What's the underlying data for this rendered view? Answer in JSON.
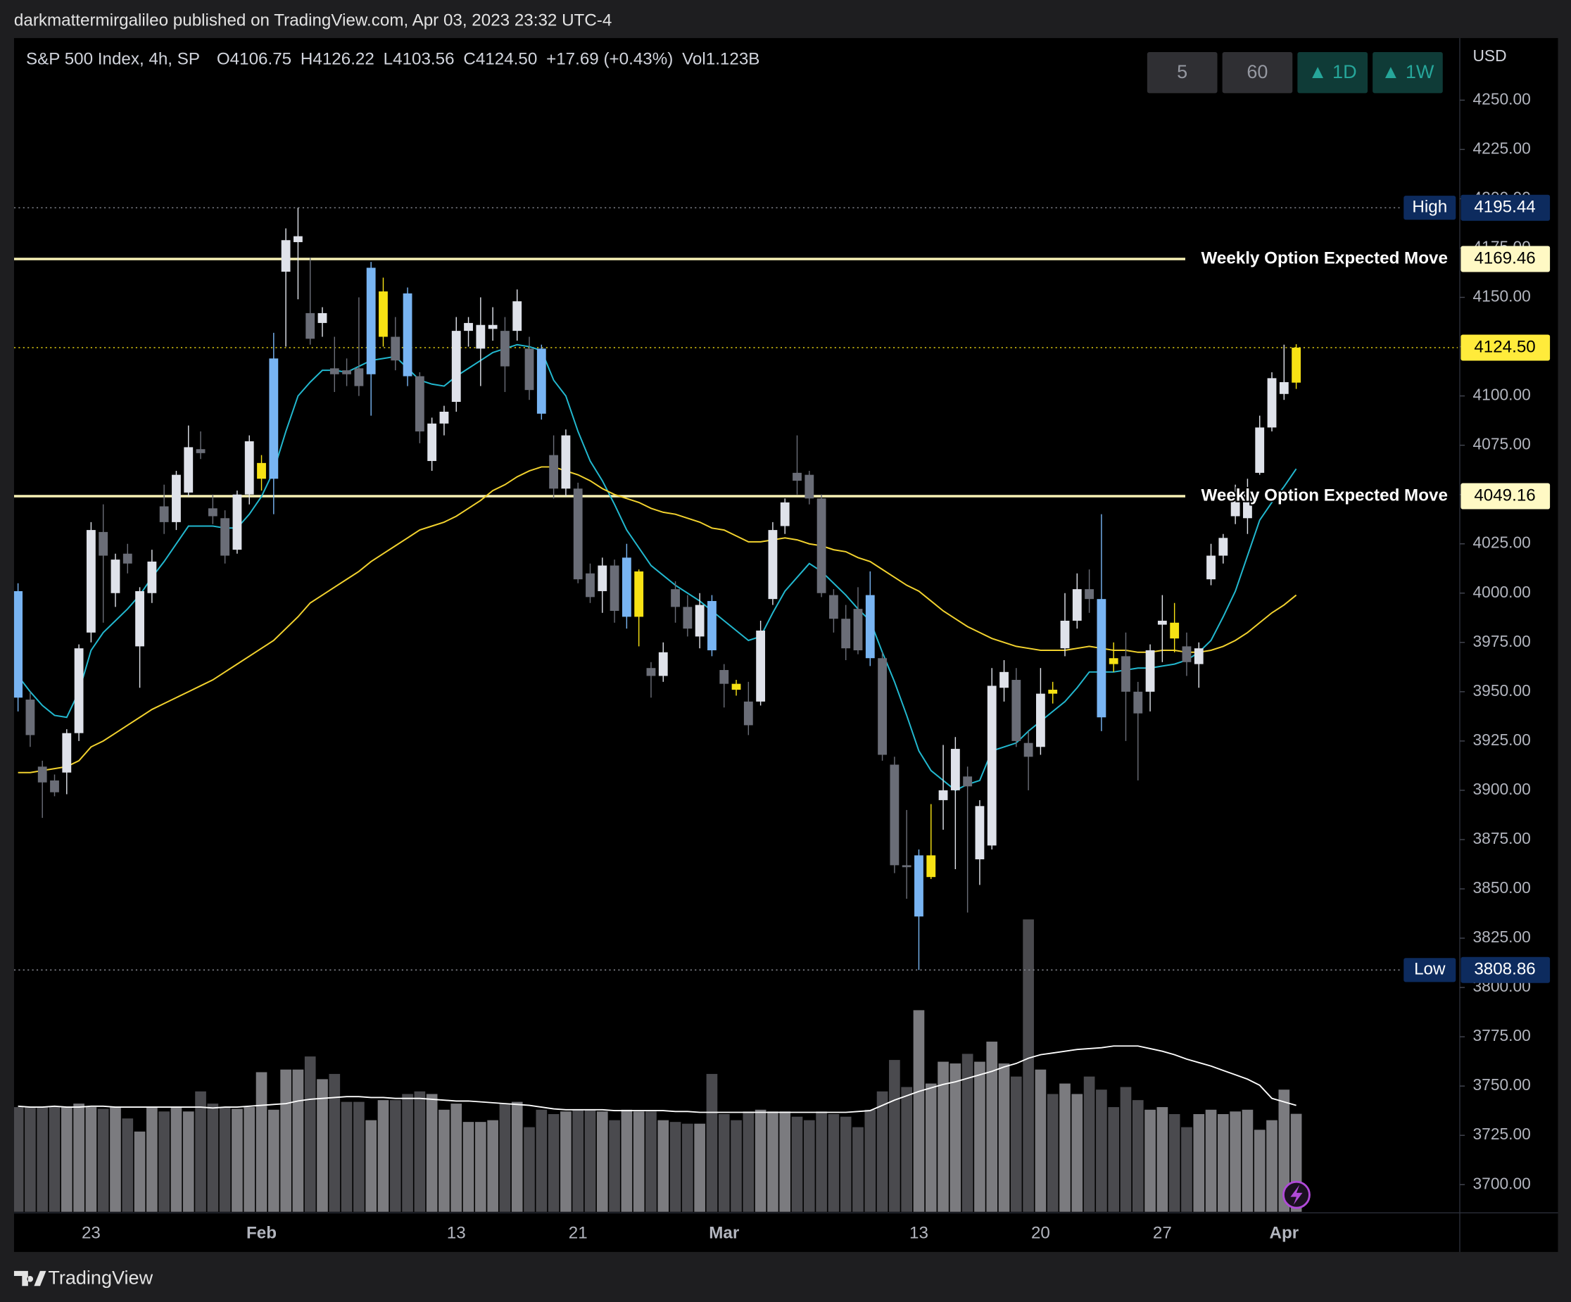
{
  "header": {
    "published": "darkmattermirgalileo published on TradingView.com, Apr 03, 2023 23:32 UTC-4"
  },
  "buttons": [
    "5",
    "60",
    "▲ 1D",
    "▲ 1W"
  ],
  "footer": {
    "brand": "TradingView"
  },
  "chart_data": {
    "type": "candlestick",
    "symbol": "S&P 500 Index, 4h, SP",
    "legend": [
      "O4106.75",
      "H4126.22",
      "L4103.56",
      "C4124.50",
      "+17.69 (+0.43%)",
      "Vol1.123B"
    ],
    "currency": "USD",
    "categories": [
      null,
      null,
      null,
      null,
      null,
      null,
      "23",
      null,
      null,
      null,
      null,
      null,
      null,
      null,
      null,
      null,
      null,
      null,
      null,
      null,
      "Feb",
      null,
      null,
      null,
      null,
      null,
      null,
      null,
      null,
      null,
      null,
      null,
      null,
      null,
      null,
      null,
      "13",
      null,
      null,
      null,
      null,
      null,
      null,
      null,
      null,
      null,
      "21",
      null,
      null,
      null,
      null,
      null,
      null,
      null,
      null,
      null,
      null,
      null,
      "Mar",
      null,
      null,
      null,
      null,
      null,
      null,
      null,
      null,
      null,
      null,
      null,
      null,
      null,
      null,
      null,
      "13",
      null,
      null,
      null,
      null,
      null,
      null,
      null,
      null,
      null,
      "20",
      null,
      null,
      null,
      null,
      null,
      null,
      null,
      null,
      null,
      "27",
      null,
      null,
      null,
      null,
      null,
      null,
      null,
      null,
      null,
      "Apr",
      null
    ],
    "open": [
      4001,
      3946,
      3912,
      3905,
      3909,
      3929,
      3980,
      4031,
      4000,
      4020,
      3973,
      4000,
      4044,
      4036,
      4051,
      4073,
      4043,
      4038,
      4022,
      4050,
      4058,
      4058,
      4163,
      4178,
      4142,
      4137,
      4114,
      4113,
      4114,
      4111,
      4130,
      4130,
      4152,
      4110,
      4067,
      4086,
      4097,
      4133,
      4124,
      4134,
      4133,
      4133,
      4124,
      4124,
      4070,
      4053,
      4053,
      4010,
      4001,
      4014,
      3988,
      3988,
      3962,
      3958,
      4002,
      3993,
      3978,
      3996,
      3961,
      3954,
      3945,
      3945,
      3997,
      4034,
      4061,
      4060,
      4048,
      3999,
      3987,
      3992,
      3999,
      3967,
      3913,
      3862,
      3836,
      3856,
      3895,
      3900,
      3907,
      3865,
      3872,
      3952,
      3956,
      3924,
      3922,
      3951,
      3972,
      3986,
      4002,
      3997,
      3967,
      3968,
      3950,
      3950,
      3984,
      3985,
      3973,
      3964,
      4007,
      4019,
      4039,
      4038,
      4061,
      4084,
      4101,
      4106.75
    ],
    "high": [
      4005,
      3950,
      3915,
      3908,
      3931,
      3974,
      4036,
      4045,
      4020,
      4025,
      4003,
      4022,
      4055,
      4062,
      4085,
      4082,
      4050,
      4042,
      4052,
      4080,
      4070,
      4132,
      4185,
      4195.44,
      4170,
      4145,
      4130,
      4119,
      4150,
      4168,
      4160,
      4140,
      4155,
      4112,
      4089,
      4095,
      4140,
      4140,
      4150,
      4145,
      4140,
      4154,
      4130,
      4126,
      4080,
      4083,
      4056,
      4015,
      4018,
      4017,
      4025,
      4012,
      3965,
      3975,
      4006,
      3999,
      4000,
      3999,
      3964,
      3956,
      3955,
      3986,
      4036,
      4048,
      4080,
      4062,
      4050,
      4002,
      3994,
      4003,
      4011,
      3970,
      3917,
      3890,
      3870,
      3893,
      3923,
      3927,
      3912,
      3895,
      3962,
      3966,
      3962,
      3930,
      3962,
      3955,
      4000,
      4010,
      4012,
      4040,
      3975,
      3980,
      3955,
      3974,
      3999,
      3995,
      3980,
      3975,
      4025,
      4030,
      4055,
      4058,
      4090,
      4112,
      4126,
      4126.22
    ],
    "low": [
      3940,
      3922,
      3886,
      3897,
      3898,
      3925,
      3975,
      3985,
      3993,
      4010,
      3952,
      3995,
      4030,
      4032,
      4049,
      4068,
      4035,
      4015,
      4020,
      4045,
      4052,
      4040,
      4125,
      4149,
      4126,
      4130,
      4102,
      4105,
      4100,
      4090,
      4125,
      4113,
      4105,
      4076,
      4062,
      4080,
      4092,
      4125,
      4105,
      4128,
      4102,
      4128,
      4098,
      4088,
      4048,
      4049,
      4005,
      3995,
      3990,
      3985,
      3982,
      3973,
      3947,
      3955,
      3985,
      3978,
      3972,
      3968,
      3942,
      3948,
      3928,
      3943,
      3994,
      4030,
      4050,
      4045,
      3998,
      3980,
      3966,
      3969,
      3963,
      3915,
      3858,
      3845,
      3808.86,
      3855,
      3880,
      3860,
      3838,
      3852,
      3870,
      3945,
      3922,
      3900,
      3918,
      3944,
      3968,
      3982,
      3990,
      3930,
      3960,
      3925,
      3905,
      3940,
      3965,
      3970,
      3958,
      3952,
      4004,
      4015,
      4035,
      4030,
      4060,
      4082,
      4098,
      4103.56
    ],
    "close": [
      3947,
      3928,
      3904,
      3899,
      3929,
      3972,
      4032,
      4019,
      4017,
      4015,
      4001,
      4016,
      4036,
      4060,
      4074,
      4071,
      4039,
      4019,
      4050,
      4077,
      4066,
      4119,
      4179,
      4181,
      4129,
      4142,
      4111,
      4111,
      4105,
      4165,
      4153,
      4118,
      4110,
      4082,
      4086,
      4092,
      4133,
      4137,
      4136,
      4136,
      4115,
      4148,
      4103,
      4091,
      4053,
      4080,
      4007,
      3998,
      4014,
      3991,
      4018,
      4011,
      3958,
      3970,
      3993,
      3982,
      3994,
      3971,
      3954,
      3951,
      3933,
      3981,
      4032,
      4046,
      4057,
      4048,
      4000,
      3987,
      3972,
      3971,
      3967,
      3918,
      3862,
      3861,
      3867,
      3867,
      3900,
      3921,
      3902,
      3892,
      3953,
      3960,
      3925,
      3917,
      3949,
      3949,
      3986,
      4002,
      3997,
      3937,
      3964,
      3950,
      3939,
      3971,
      3986,
      3977,
      3965,
      3972,
      4019,
      4028,
      4049,
      4050,
      4084,
      4109,
      4107,
      4124.5
    ],
    "colors": [
      "#78b4f2",
      "#6a6d77",
      "#6a6d77",
      "#6a6d77",
      "#dfe2ea",
      "#dfe2ea",
      "#dfe2ea",
      "#6a6d77",
      "#dfe2ea",
      "#6a6d77",
      "#dfe2ea",
      "#dfe2ea",
      "#6a6d77",
      "#dfe2ea",
      "#dfe2ea",
      "#6a6d77",
      "#6a6d77",
      "#6a6d77",
      "#dfe2ea",
      "#dfe2ea",
      "#f7e214",
      "#78b4f2",
      "#dfe2ea",
      "#dfe2ea",
      "#6a6d77",
      "#dfe2ea",
      "#6a6d77",
      "#6a6d77",
      "#6a6d77",
      "#78b4f2",
      "#f7e214",
      "#6a6d77",
      "#78b4f2",
      "#6a6d77",
      "#dfe2ea",
      "#dfe2ea",
      "#dfe2ea",
      "#dfe2ea",
      "#dfe2ea",
      "#dfe2ea",
      "#6a6d77",
      "#dfe2ea",
      "#6a6d77",
      "#78b4f2",
      "#6a6d77",
      "#dfe2ea",
      "#6a6d77",
      "#6a6d77",
      "#dfe2ea",
      "#6a6d77",
      "#78b4f2",
      "#f7e214",
      "#6a6d77",
      "#dfe2ea",
      "#6a6d77",
      "#6a6d77",
      "#dfe2ea",
      "#78b4f2",
      "#6a6d77",
      "#f7e214",
      "#6a6d77",
      "#dfe2ea",
      "#dfe2ea",
      "#dfe2ea",
      "#6a6d77",
      "#6a6d77",
      "#6a6d77",
      "#6a6d77",
      "#6a6d77",
      "#6a6d77",
      "#78b4f2",
      "#6a6d77",
      "#6a6d77",
      "#6a6d77",
      "#78b4f2",
      "#f7e214",
      "#dfe2ea",
      "#dfe2ea",
      "#6a6d77",
      "#dfe2ea",
      "#dfe2ea",
      "#dfe2ea",
      "#6a6d77",
      "#6a6d77",
      "#dfe2ea",
      "#f7e214",
      "#dfe2ea",
      "#dfe2ea",
      "#6a6d77",
      "#78b4f2",
      "#f7e214",
      "#6a6d77",
      "#6a6d77",
      "#dfe2ea",
      "#dfe2ea",
      "#f7e214",
      "#6a6d77",
      "#dfe2ea",
      "#dfe2ea",
      "#dfe2ea",
      "#dfe2ea",
      "#dfe2ea",
      "#dfe2ea",
      "#dfe2ea",
      "#dfe2ea",
      "#f7e214"
    ],
    "volume": [
      1.2,
      1.2,
      1.2,
      1.2,
      1.2,
      1.24,
      1.2,
      1.18,
      1.2,
      1.07,
      0.92,
      1.2,
      1.15,
      1.2,
      1.15,
      1.38,
      1.24,
      1.2,
      1.18,
      1.2,
      1.6,
      1.17,
      1.63,
      1.63,
      1.78,
      1.52,
      1.58,
      1.26,
      1.26,
      1.05,
      1.28,
      1.28,
      1.35,
      1.38,
      1.35,
      1.17,
      1.24,
      1.03,
      1.03,
      1.05,
      1.24,
      1.26,
      0.97,
      1.17,
      1.12,
      1.15,
      1.17,
      1.17,
      1.15,
      1.05,
      1.17,
      1.15,
      1.15,
      1.05,
      1.03,
      1.01,
      1.01,
      1.58,
      1.12,
      1.05,
      1.15,
      1.17,
      1.15,
      1.15,
      1.09,
      1.05,
      1.15,
      1.12,
      1.09,
      0.97,
      1.17,
      1.38,
      1.74,
      1.43,
      2.31,
      1.47,
      1.72,
      1.7,
      1.81,
      1.72,
      1.95,
      1.7,
      1.55,
      3.35,
      1.63,
      1.35,
      1.47,
      1.35,
      1.55,
      1.4,
      1.2,
      1.43,
      1.28,
      1.17,
      1.2,
      1.12,
      0.97,
      1.12,
      1.17,
      1.12,
      1.15,
      1.17,
      0.94,
      1.05,
      1.4,
      1.123
    ],
    "volume_colors": {
      "up": "#7b7b7f",
      "down": "#4a4a4e"
    },
    "volume_ma": {
      "color": "#ffffff",
      "values": [
        1.21,
        1.2,
        1.2,
        1.21,
        1.2,
        1.2,
        1.21,
        1.21,
        1.2,
        1.2,
        1.2,
        1.2,
        1.2,
        1.2,
        1.2,
        1.2,
        1.19,
        1.2,
        1.2,
        1.21,
        1.22,
        1.23,
        1.24,
        1.27,
        1.29,
        1.3,
        1.31,
        1.32,
        1.32,
        1.31,
        1.31,
        1.3,
        1.3,
        1.3,
        1.29,
        1.28,
        1.27,
        1.27,
        1.26,
        1.25,
        1.24,
        1.23,
        1.22,
        1.2,
        1.18,
        1.17,
        1.17,
        1.17,
        1.17,
        1.16,
        1.16,
        1.16,
        1.16,
        1.16,
        1.15,
        1.15,
        1.14,
        1.14,
        1.14,
        1.14,
        1.14,
        1.14,
        1.14,
        1.14,
        1.14,
        1.14,
        1.14,
        1.14,
        1.14,
        1.15,
        1.16,
        1.22,
        1.28,
        1.33,
        1.38,
        1.42,
        1.46,
        1.49,
        1.53,
        1.57,
        1.61,
        1.66,
        1.7,
        1.76,
        1.8,
        1.82,
        1.84,
        1.86,
        1.87,
        1.88,
        1.9,
        1.9,
        1.9,
        1.87,
        1.84,
        1.8,
        1.75,
        1.71,
        1.67,
        1.62,
        1.57,
        1.52,
        1.45,
        1.3,
        1.26,
        1.22
      ]
    },
    "overlays": [
      {
        "color": "#22b8cf",
        "values": [
          3958,
          3950,
          3943,
          3938,
          3937,
          3950,
          3971,
          3980,
          3986,
          3992,
          3999,
          4008,
          4016,
          4025,
          4034,
          4034,
          4034,
          4033,
          4033,
          4040,
          4049,
          4062,
          4082,
          4100,
          4107,
          4113,
          4113,
          4112,
          4115,
          4118,
          4119,
          4120,
          4114,
          4108,
          4106,
          4105,
          4110,
          4114,
          4118,
          4122,
          4124,
          4126,
          4125,
          4123,
          4108,
          4100,
          4082,
          4067,
          4057,
          4045,
          4032,
          4023,
          4014,
          4009,
          4004,
          4000,
          3996,
          3991,
          3986,
          3981,
          3976,
          3978,
          3990,
          4001,
          4008,
          4015,
          4011,
          4005,
          3999,
          3992,
          3986,
          3970,
          3955,
          3938,
          3920,
          3910,
          3905,
          3900,
          3903,
          3905,
          3920,
          3922,
          3924,
          3930,
          3935,
          3940,
          3945,
          3952,
          3960,
          3960,
          3960,
          3961,
          3962,
          3962,
          3963,
          3964,
          3966,
          3970,
          3976,
          3988,
          4001,
          4019,
          4037,
          4046,
          4054,
          4063
        ]
      },
      {
        "color": "#f2d22e",
        "values": [
          3909,
          3909,
          3910,
          3911,
          3912,
          3915,
          3922,
          3925,
          3929,
          3933,
          3937,
          3941,
          3944,
          3947,
          3950,
          3953,
          3956,
          3960,
          3964,
          3968,
          3972,
          3976,
          3982,
          3988,
          3995,
          3999,
          4003,
          4007,
          4011,
          4016,
          4020,
          4024,
          4028,
          4032,
          4034,
          4036,
          4039,
          4043,
          4047,
          4052,
          4055,
          4059,
          4062,
          4064,
          4064,
          4062,
          4060,
          4057,
          4053,
          4050,
          4048,
          4046,
          4043,
          4041,
          4040,
          4038,
          4036,
          4033,
          4032,
          4029,
          4026,
          4026,
          4027,
          4028,
          4027,
          4025,
          4024,
          4022,
          4021,
          4018,
          4016,
          4012,
          4008,
          4004,
          4001,
          3996,
          3991,
          3987,
          3983,
          3980,
          3977,
          3975,
          3973,
          3972,
          3971,
          3971,
          3971,
          3972,
          3973,
          3972,
          3971,
          3971,
          3970,
          3970,
          3971,
          3971,
          3970,
          3970,
          3971,
          3973,
          3976,
          3980,
          3985,
          3990,
          3994,
          3999
        ]
      }
    ],
    "levels": [
      {
        "name": "High",
        "value": 4195.44,
        "label": "4195.44",
        "line_color": "#8a8d96",
        "style": "dotted",
        "box_color": "#0d2b5e",
        "box_text": "#ffffff"
      },
      {
        "text": "Weekly Option Expected Move",
        "value": 4169.46,
        "label": "4169.46",
        "line_color": "#f7f1b5",
        "style": "solid",
        "box_color": "#fff9c4",
        "box_text": "#000000"
      },
      {
        "value": 4124.5,
        "label": "4124.50",
        "line_color": "#f7e214",
        "style": "dotted",
        "box_color": "#ffeb3b",
        "box_text": "#000000"
      },
      {
        "text": "Weekly Option Expected Move",
        "value": 4049.16,
        "label": "4049.16",
        "line_color": "#f7f1b5",
        "style": "solid",
        "box_color": "#fff9c4",
        "box_text": "#000000"
      },
      {
        "name": "Low",
        "value": 3808.86,
        "label": "3808.86",
        "line_color": "#8a8d96",
        "style": "dotted",
        "box_color": "#0d2b5e",
        "box_text": "#ffffff"
      }
    ],
    "ylim": [
      3686.2,
      4281.5
    ],
    "yticks": [
      {
        "value": 4250,
        "label": "4250.00"
      },
      {
        "value": 4225,
        "label": "4225.00"
      },
      {
        "value": 4200,
        "label": "4200.00"
      },
      {
        "value": 4175,
        "label": "4175.00"
      },
      {
        "value": 4150,
        "label": "4150.00"
      },
      {
        "value": 4125,
        "label": "4125.00"
      },
      {
        "value": 4100,
        "label": "4100.00"
      },
      {
        "value": 4075,
        "label": "4075.00"
      },
      {
        "value": 4050,
        "label": "4050.00"
      },
      {
        "value": 4025,
        "label": "4025.00"
      },
      {
        "value": 4000,
        "label": "4000.00"
      },
      {
        "value": 3975,
        "label": "3975.00"
      },
      {
        "value": 3950,
        "label": "3950.00"
      },
      {
        "value": 3925,
        "label": "3925.00"
      },
      {
        "value": 3900,
        "label": "3900.00"
      },
      {
        "value": 3875,
        "label": "3875.00"
      },
      {
        "value": 3850,
        "label": "3850.00"
      },
      {
        "value": 3825,
        "label": "3825.00"
      },
      {
        "value": 3800,
        "label": "3800.00"
      },
      {
        "value": 3775,
        "label": "3775.00"
      },
      {
        "value": 3750,
        "label": "3750.00"
      },
      {
        "value": 3725,
        "label": "3725.00"
      },
      {
        "value": 3700,
        "label": "3700.00"
      }
    ]
  }
}
